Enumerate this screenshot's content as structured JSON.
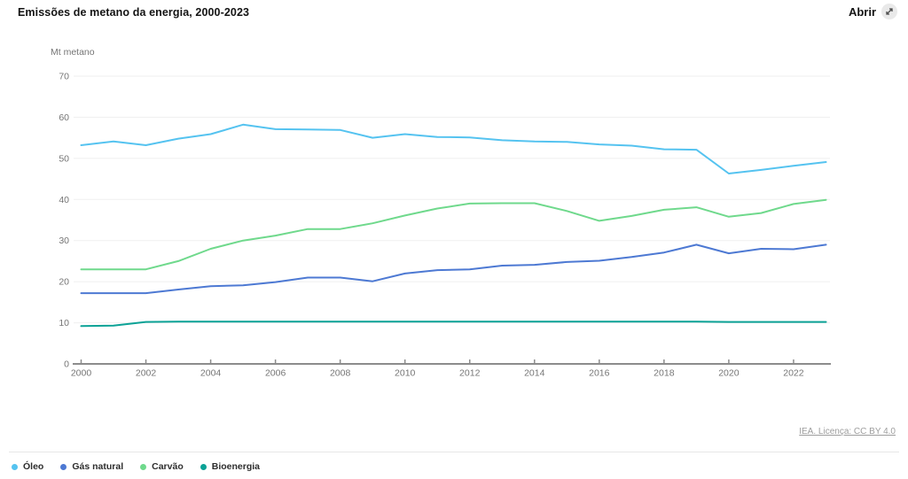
{
  "header": {
    "title": "Emissões de metano da energia, 2000-2023",
    "open_label": "Abrir",
    "open_icon": "expand-diagonal-arrow"
  },
  "attribution": "IEA. Licença: CC BY 4.0",
  "chart_data": {
    "type": "line",
    "title": "Emissões de metano da energia, 2000-2023",
    "unit_label": "Mt metano",
    "xlabel": "",
    "ylabel": "Mt metano",
    "xlim": [
      2000,
      2023
    ],
    "ylim": [
      0,
      70
    ],
    "grid": true,
    "legend_position": "bottom",
    "x": [
      2000,
      2001,
      2002,
      2003,
      2004,
      2005,
      2006,
      2007,
      2008,
      2009,
      2010,
      2011,
      2012,
      2013,
      2014,
      2015,
      2016,
      2017,
      2018,
      2019,
      2020,
      2021,
      2022,
      2023
    ],
    "x_ticks": [
      2000,
      2002,
      2004,
      2006,
      2008,
      2010,
      2012,
      2014,
      2016,
      2018,
      2020,
      2022
    ],
    "y_ticks": [
      0,
      10,
      20,
      30,
      40,
      50,
      60,
      70
    ],
    "series": [
      {
        "name": "Óleo",
        "color": "#55c3f0",
        "values": [
          53.2,
          54.1,
          53.2,
          54.8,
          55.9,
          58.2,
          57.1,
          57.0,
          56.9,
          55.0,
          55.9,
          55.2,
          55.1,
          54.4,
          54.1,
          54.0,
          53.4,
          53.1,
          52.2,
          52.1,
          46.3,
          47.2,
          48.2,
          49.1
        ]
      },
      {
        "name": "Gás natural",
        "color": "#4d79d3",
        "values": [
          17.2,
          17.2,
          17.2,
          18.1,
          18.9,
          19.1,
          19.9,
          21.0,
          21.0,
          20.1,
          22.0,
          22.8,
          23.0,
          23.9,
          24.1,
          24.8,
          25.1,
          26.0,
          27.1,
          29.0,
          26.9,
          28.0,
          27.9,
          29.0
        ]
      },
      {
        "name": "Carvão",
        "color": "#6fd98c",
        "values": [
          23.0,
          23.0,
          23.0,
          25.0,
          28.0,
          30.0,
          31.2,
          32.8,
          32.8,
          34.2,
          36.1,
          37.8,
          39.0,
          39.1,
          39.1,
          37.2,
          34.8,
          36.0,
          37.5,
          38.1,
          35.8,
          36.7,
          38.9,
          39.9
        ]
      },
      {
        "name": "Bioenergia",
        "color": "#0ca296",
        "values": [
          9.2,
          9.3,
          10.2,
          10.3,
          10.3,
          10.3,
          10.3,
          10.3,
          10.3,
          10.3,
          10.3,
          10.3,
          10.3,
          10.3,
          10.3,
          10.3,
          10.3,
          10.3,
          10.3,
          10.3,
          10.2,
          10.2,
          10.2,
          10.2
        ]
      }
    ]
  }
}
